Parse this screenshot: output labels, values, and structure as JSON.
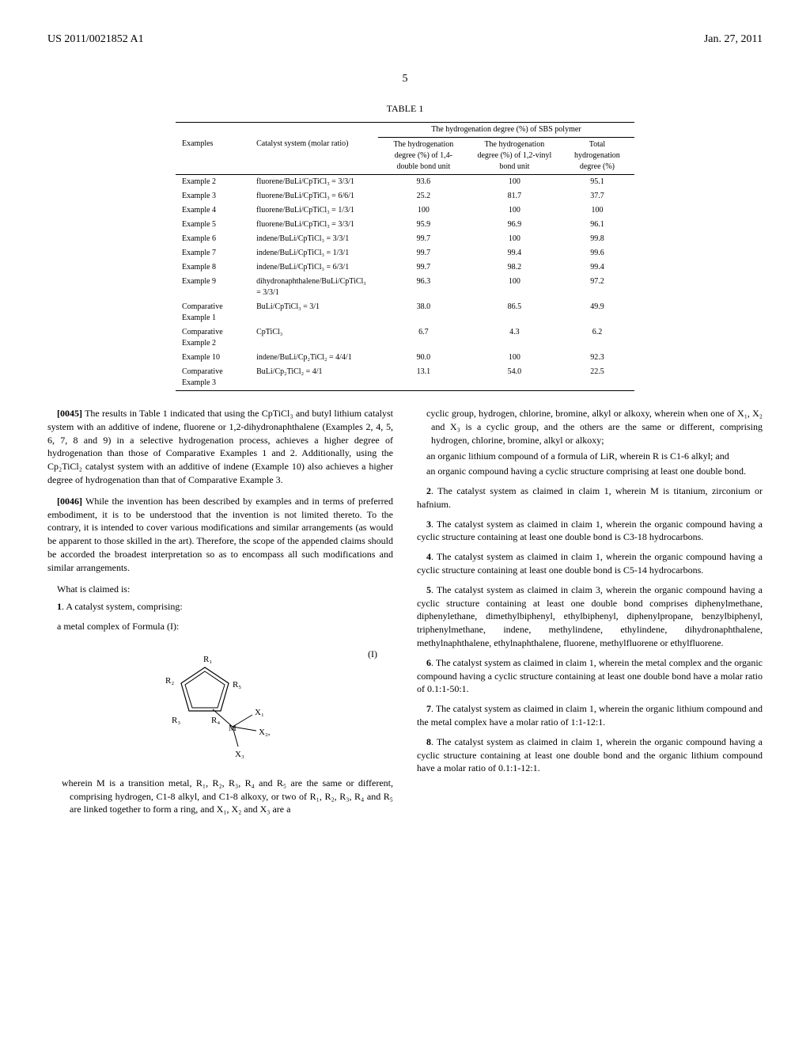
{
  "header": {
    "pub_number": "US 2011/0021852 A1",
    "pub_date": "Jan. 27, 2011"
  },
  "page_number": "5",
  "table": {
    "title": "TABLE 1",
    "header_group": "The hydrogenation degree (%) of SBS polymer",
    "col_headers": [
      "Examples",
      "Catalyst system (molar ratio)",
      "The hydrogenation degree (%) of 1,4-double bond unit",
      "The hydrogenation degree (%) of 1,2-vinyl bond unit",
      "Total hydrogenation degree (%)"
    ],
    "rows": [
      [
        "Example 2",
        "fluorene/BuLi/CpTiCl₃ = 3/3/1",
        "93.6",
        "100",
        "95.1"
      ],
      [
        "Example 3",
        "fluorene/BuLi/CpTiCl₃ = 6/6/1",
        "25.2",
        "81.7",
        "37.7"
      ],
      [
        "Example 4",
        "fluorene/BuLi/CpTiCl₃ = 1/3/1",
        "100",
        "100",
        "100"
      ],
      [
        "Example 5",
        "fluorene/BuLi/CpTiCl₃ = 3/3/1",
        "95.9",
        "96.9",
        "96.1"
      ],
      [
        "Example 6",
        "indene/BuLi/CpTiCl₃ = 3/3/1",
        "99.7",
        "100",
        "99.8"
      ],
      [
        "Example 7",
        "indene/BuLi/CpTiCl₃ = 1/3/1",
        "99.7",
        "99.4",
        "99.6"
      ],
      [
        "Example 8",
        "indene/BuLi/CpTiCl₃ = 6/3/1",
        "99.7",
        "98.2",
        "99.4"
      ],
      [
        "Example 9",
        "dihydronaphthalene/BuLi/CpTiCl₃ = 3/3/1",
        "96.3",
        "100",
        "97.2"
      ],
      [
        "Comparative Example 1",
        "BuLi/CpTiCl₃ = 3/1",
        "38.0",
        "86.5",
        "49.9"
      ],
      [
        "Comparative Example 2",
        "CpTiCl₃",
        "6.7",
        "4.3",
        "6.2"
      ],
      [
        "Example 10",
        "indene/BuLi/Cp₂TiCl₂ = 4/4/1",
        "90.0",
        "100",
        "92.3"
      ],
      [
        "Comparative Example 3",
        "BuLi/Cp₂TiCl₂ = 4/1",
        "13.1",
        "54.0",
        "22.5"
      ]
    ]
  },
  "paragraphs": {
    "p45_num": "[0045]",
    "p45": "The results in Table 1 indicated that using the CpTiCl₃ and butyl lithium catalyst system with an additive of indene, fluorene or 1,2-dihydronaphthalene (Examples 2, 4, 5, 6, 7, 8 and 9) in a selective hydrogenation process, achieves a higher degree of hydrogenation than those of Comparative Examples 1 and 2. Additionally, using the Cp₂TiCl₂ catalyst system with an additive of indene (Example 10) also achieves a higher degree of hydrogenation than that of Comparative Example 3.",
    "p46_num": "[0046]",
    "p46": "While the invention has been described by examples and in terms of preferred embodiment, it is to be understood that the invention is not limited thereto. To the contrary, it is intended to cover various modifications and similar arrangements (as would be apparent to those skilled in the art). Therefore, the scope of the appended claims should be accorded the broadest interpretation so as to encompass all such modifications and similar arrangements."
  },
  "claims": {
    "heading": "What is claimed is:",
    "c1": "1",
    "c1_text": ". A catalyst system, comprising:",
    "c1_sub1": "a metal complex of Formula (I):",
    "formula_label": "(I)",
    "c1_wherein": "wherein M is a transition metal, R₁, R₂, R₃, R₄ and R₅ are the same or different, comprising hydrogen, C1-8 alkyl, and C1-8 alkoxy, or two of R₁, R₂, R₃, R₄ and R₅ are linked together to form a ring, and X₁, X₂ and X₃ are a",
    "c1_cont1": "cyclic group, hydrogen, chlorine, bromine, alkyl or alkoxy, wherein when one of X₁, X₂ and X₃ is a cyclic group, and the others are the same or different, comprising hydrogen, chlorine, bromine, alkyl or alkoxy;",
    "c1_cont2": "an organic lithium compound of a formula of LiR, wherein R is C1-6 alkyl; and",
    "c1_cont3": "an organic compound having a cyclic structure comprising at least one double bond.",
    "c2": "2",
    "c2_text": ". The catalyst system as claimed in claim 1, wherein M is titanium, zirconium or hafnium.",
    "c3": "3",
    "c3_text": ". The catalyst system as claimed in claim 1, wherein the organic compound having a cyclic structure containing at least one double bond is C3-18 hydrocarbons.",
    "c4": "4",
    "c4_text": ". The catalyst system as claimed in claim 1, wherein the organic compound having a cyclic structure containing at least one double bond is C5-14 hydrocarbons.",
    "c5": "5",
    "c5_text": ". The catalyst system as claimed in claim 3, wherein the organic compound having a cyclic structure containing at least one double bond comprises diphenylmethane, diphenylethane, dimethylbiphenyl, ethylbiphenyl, diphenylpropane, benzylbiphenyl, triphenylmethane, indene, methylindene, ethylindene, dihydronaphthalene, methylnaphthalene, ethylnaphthalene, fluorene, methylfluorene or ethylfluorene.",
    "c6": "6",
    "c6_text": ". The catalyst system as claimed in claim 1, wherein the metal complex and the organic compound having a cyclic structure containing at least one double bond have a molar ratio of 0.1:1-50:1.",
    "c7": "7",
    "c7_text": ". The catalyst system as claimed in claim 1, wherein the organic lithium compound and the metal complex have a molar ratio of 1:1-12:1.",
    "c8": "8",
    "c8_text": ". The catalyst system as claimed in claim 1, wherein the organic compound having a cyclic structure containing at least one double bond and the organic lithium compound have a molar ratio of 0.1:1-12:1."
  },
  "formula": {
    "labels": {
      "r1": "R₁",
      "r2": "R₂",
      "r3": "R₃",
      "r4": "R₄",
      "r5": "R₅",
      "m": "M",
      "x1": "X₁",
      "x2": "X₂,",
      "x3": "X₃"
    }
  }
}
